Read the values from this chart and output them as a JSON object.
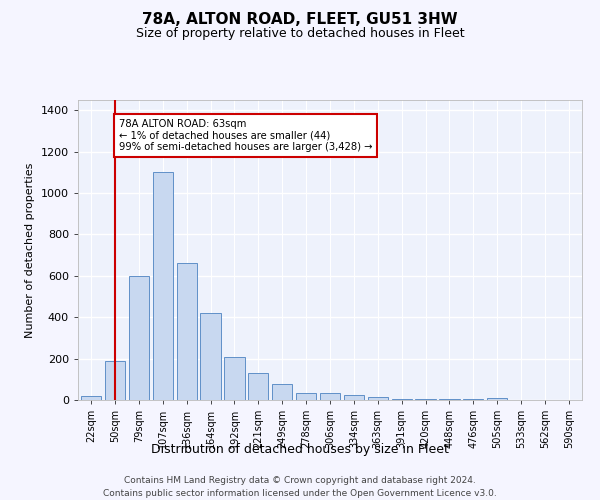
{
  "title": "78A, ALTON ROAD, FLEET, GU51 3HW",
  "subtitle": "Size of property relative to detached houses in Fleet",
  "xlabel": "Distribution of detached houses by size in Fleet",
  "ylabel": "Number of detached properties",
  "bar_color": "#c8d8f0",
  "bar_edge_color": "#6090c8",
  "background_color": "#eef2fc",
  "grid_color": "#ffffff",
  "annotation_text": "78A ALTON ROAD: 63sqm\n← 1% of detached houses are smaller (44)\n99% of semi-detached houses are larger (3,428) →",
  "vline_x": 1.0,
  "vline_color": "#cc0000",
  "annotation_box_color": "#ffffff",
  "annotation_box_edge": "#cc0000",
  "footer_text": "Contains HM Land Registry data © Crown copyright and database right 2024.\nContains public sector information licensed under the Open Government Licence v3.0.",
  "categories": [
    "22sqm",
    "50sqm",
    "79sqm",
    "107sqm",
    "136sqm",
    "164sqm",
    "192sqm",
    "221sqm",
    "249sqm",
    "278sqm",
    "306sqm",
    "334sqm",
    "363sqm",
    "391sqm",
    "420sqm",
    "448sqm",
    "476sqm",
    "505sqm",
    "533sqm",
    "562sqm",
    "590sqm"
  ],
  "values": [
    20,
    190,
    600,
    1100,
    660,
    420,
    210,
    130,
    75,
    35,
    35,
    25,
    15,
    5,
    5,
    5,
    3,
    8,
    2,
    2,
    1
  ],
  "ylim": [
    0,
    1450
  ],
  "yticks": [
    0,
    200,
    400,
    600,
    800,
    1000,
    1200,
    1400
  ]
}
